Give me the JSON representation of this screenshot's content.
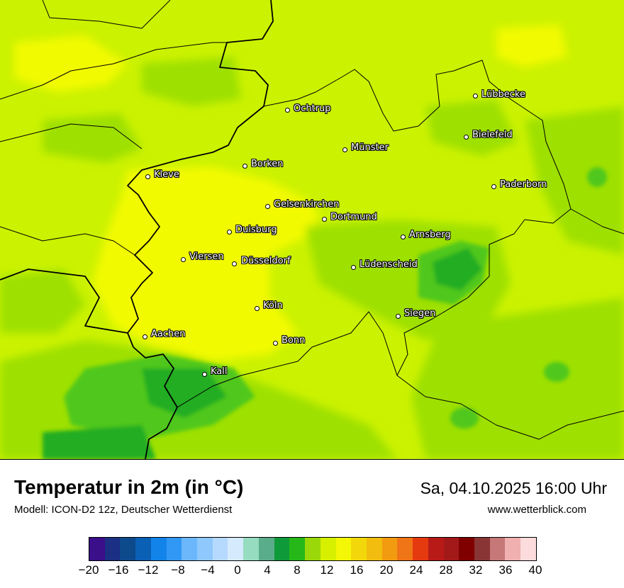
{
  "map": {
    "cities": [
      {
        "name": "Lübbecke"
      },
      {
        "name": "Ochtrup"
      },
      {
        "name": "Bielefeld"
      },
      {
        "name": "Münster"
      },
      {
        "name": "Borken"
      },
      {
        "name": "Kleve"
      },
      {
        "name": "Paderborn"
      },
      {
        "name": "Gelsenkirchen"
      },
      {
        "name": "Dortmund"
      },
      {
        "name": "Duisburg"
      },
      {
        "name": "Arnsberg"
      },
      {
        "name": "Viersen"
      },
      {
        "name": "Düsseldorf"
      },
      {
        "name": "Lüdenscheid"
      },
      {
        "name": "Köln"
      },
      {
        "name": "Siegen"
      },
      {
        "name": "Aachen"
      },
      {
        "name": "Bonn"
      },
      {
        "name": "Kall"
      }
    ],
    "colors": {
      "warm_yellow": "#f2fa00",
      "yellow_green": "#cbf200",
      "light_green": "#9ee000",
      "mid_green": "#4fc71a",
      "dark_green": "#22ad24"
    }
  },
  "header": {
    "title": "Temperatur in 2m (in °C)",
    "model": "Modell: ICON-D2 12z, Deutscher Wetterdienst",
    "datetime": "Sa, 04.10.2025 16:00 Uhr",
    "website": "www.wetterblick.com"
  },
  "legend": {
    "colors": [
      "#3b0e8a",
      "#1b2f83",
      "#0d4a8c",
      "#0a60b5",
      "#1283e8",
      "#3298f5",
      "#6cb7fb",
      "#8ec8fc",
      "#b6dafd",
      "#d6eafe",
      "#95dcc0",
      "#5aad8a",
      "#0f9a3a",
      "#25b818",
      "#9bd80a",
      "#d6f000",
      "#f4f705",
      "#f2d80a",
      "#f2bd0e",
      "#f29a10",
      "#f07516",
      "#e53a10",
      "#b81a18",
      "#a31818",
      "#800000",
      "#8a3535",
      "#c67878",
      "#f0b0b0",
      "#fcdcdc"
    ],
    "ticks": [
      "−20",
      "−16",
      "−12",
      "−8",
      "−4",
      "0",
      "4",
      "8",
      "12",
      "16",
      "20",
      "24",
      "28",
      "32",
      "36",
      "40"
    ]
  }
}
